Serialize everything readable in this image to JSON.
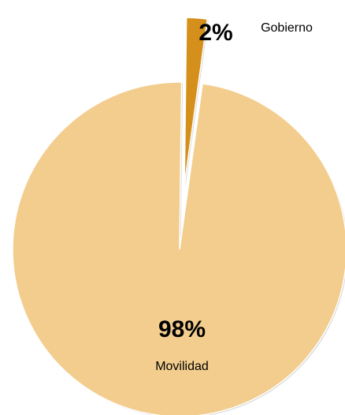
{
  "chart_data": {
    "type": "pie",
    "slices": [
      {
        "name": "Movilidad",
        "value": 98,
        "label": "98%",
        "color": "#f2cd8d",
        "exploded": false
      },
      {
        "name": "Gobierno",
        "value": 2,
        "label": "2%",
        "color": "#d4901a",
        "exploded": true
      }
    ],
    "title": "",
    "legend": "none",
    "labels": "percent and category name"
  }
}
